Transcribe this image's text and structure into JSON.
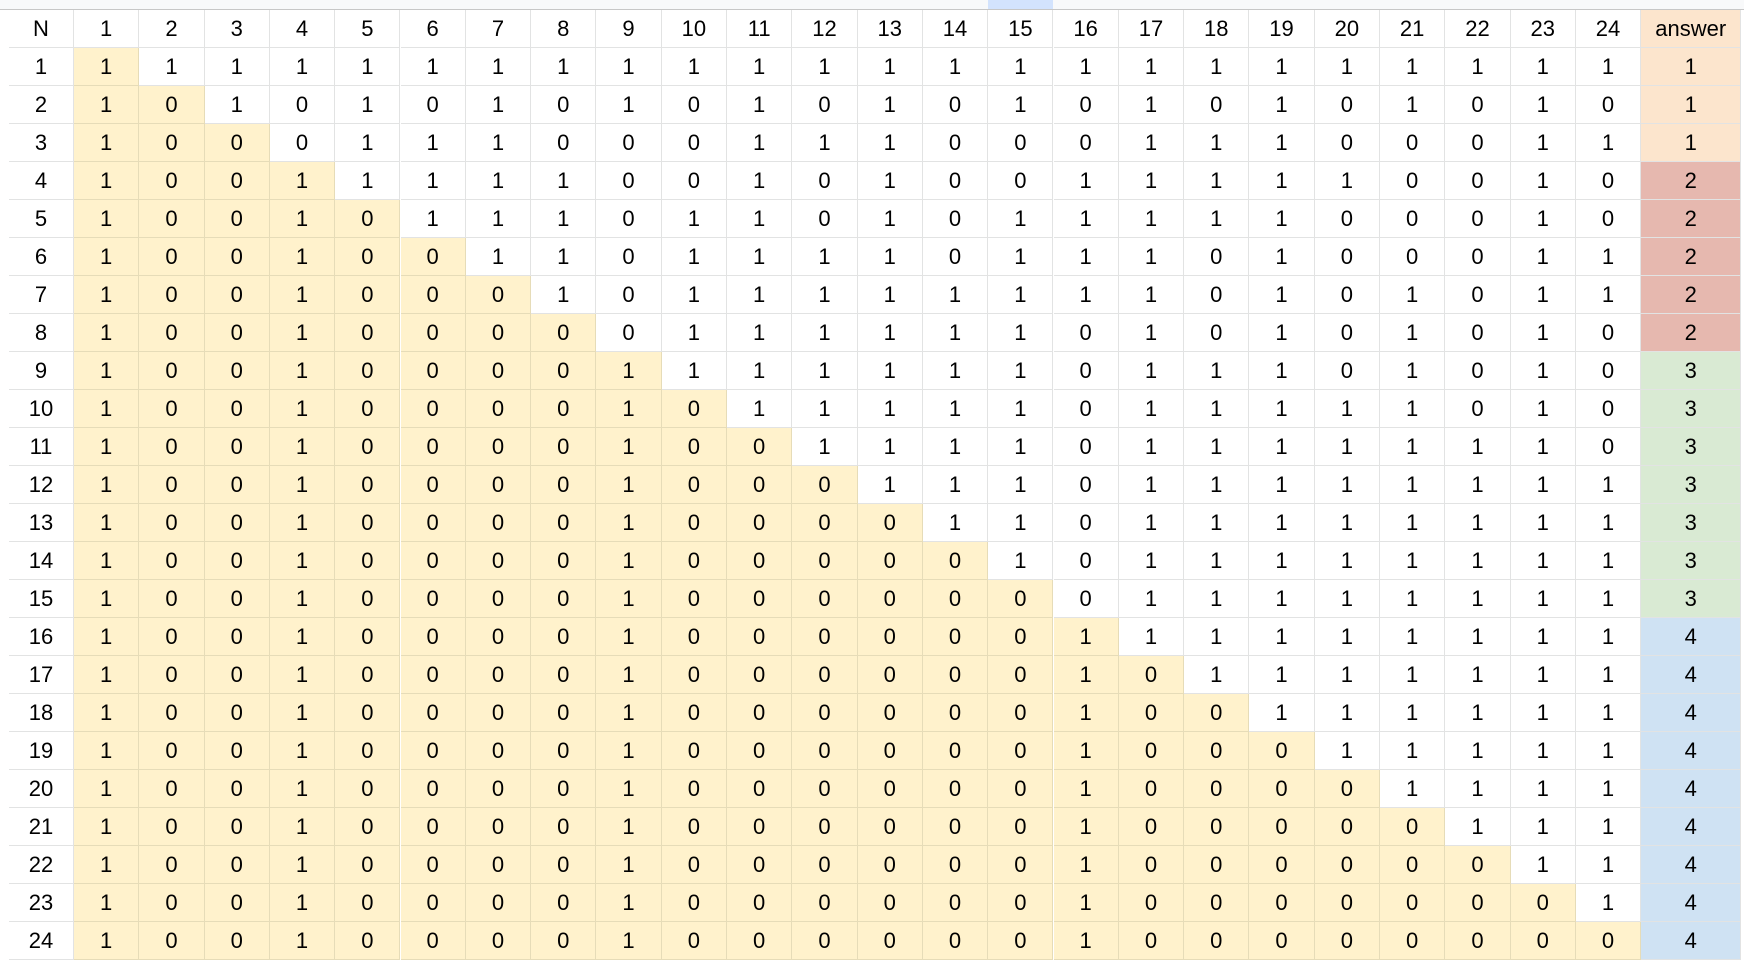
{
  "sheet": {
    "header_label": "N",
    "answer_label": "answer",
    "header_highlight_column": 15,
    "colors": {
      "triangle_fill": "#fff2cc",
      "answer_header_fill": "#fce5cd",
      "answer_groups": {
        "1": "#fce5cd",
        "2": "#e6b8af",
        "3": "#d9ead3",
        "4": "#cfe2f3"
      },
      "header_highlight": "#d3e3fd"
    },
    "columns": [
      "1",
      "2",
      "3",
      "4",
      "5",
      "6",
      "7",
      "8",
      "9",
      "10",
      "11",
      "12",
      "13",
      "14",
      "15",
      "16",
      "17",
      "18",
      "19",
      "20",
      "21",
      "22",
      "23",
      "24"
    ],
    "rows": [
      {
        "n": "1",
        "cells": [
          "1",
          "1",
          "1",
          "1",
          "1",
          "1",
          "1",
          "1",
          "1",
          "1",
          "1",
          "1",
          "1",
          "1",
          "1",
          "1",
          "1",
          "1",
          "1",
          "1",
          "1",
          "1",
          "1",
          "1"
        ],
        "answer": "1"
      },
      {
        "n": "2",
        "cells": [
          "1",
          "0",
          "1",
          "0",
          "1",
          "0",
          "1",
          "0",
          "1",
          "0",
          "1",
          "0",
          "1",
          "0",
          "1",
          "0",
          "1",
          "0",
          "1",
          "0",
          "1",
          "0",
          "1",
          "0"
        ],
        "answer": "1"
      },
      {
        "n": "3",
        "cells": [
          "1",
          "0",
          "0",
          "0",
          "1",
          "1",
          "1",
          "0",
          "0",
          "0",
          "1",
          "1",
          "1",
          "0",
          "0",
          "0",
          "1",
          "1",
          "1",
          "0",
          "0",
          "0",
          "1",
          "1"
        ],
        "answer": "1"
      },
      {
        "n": "4",
        "cells": [
          "1",
          "0",
          "0",
          "1",
          "1",
          "1",
          "1",
          "1",
          "0",
          "0",
          "1",
          "0",
          "1",
          "0",
          "0",
          "1",
          "1",
          "1",
          "1",
          "1",
          "0",
          "0",
          "1",
          "0"
        ],
        "answer": "2"
      },
      {
        "n": "5",
        "cells": [
          "1",
          "0",
          "0",
          "1",
          "0",
          "1",
          "1",
          "1",
          "0",
          "1",
          "1",
          "0",
          "1",
          "0",
          "1",
          "1",
          "1",
          "1",
          "1",
          "0",
          "0",
          "0",
          "1",
          "0"
        ],
        "answer": "2"
      },
      {
        "n": "6",
        "cells": [
          "1",
          "0",
          "0",
          "1",
          "0",
          "0",
          "1",
          "1",
          "0",
          "1",
          "1",
          "1",
          "1",
          "0",
          "1",
          "1",
          "1",
          "0",
          "1",
          "0",
          "0",
          "0",
          "1",
          "1"
        ],
        "answer": "2"
      },
      {
        "n": "7",
        "cells": [
          "1",
          "0",
          "0",
          "1",
          "0",
          "0",
          "0",
          "1",
          "0",
          "1",
          "1",
          "1",
          "1",
          "1",
          "1",
          "1",
          "1",
          "0",
          "1",
          "0",
          "1",
          "0",
          "1",
          "1"
        ],
        "answer": "2"
      },
      {
        "n": "8",
        "cells": [
          "1",
          "0",
          "0",
          "1",
          "0",
          "0",
          "0",
          "0",
          "0",
          "1",
          "1",
          "1",
          "1",
          "1",
          "1",
          "0",
          "1",
          "0",
          "1",
          "0",
          "1",
          "0",
          "1",
          "0"
        ],
        "answer": "2"
      },
      {
        "n": "9",
        "cells": [
          "1",
          "0",
          "0",
          "1",
          "0",
          "0",
          "0",
          "0",
          "1",
          "1",
          "1",
          "1",
          "1",
          "1",
          "1",
          "0",
          "1",
          "1",
          "1",
          "0",
          "1",
          "0",
          "1",
          "0"
        ],
        "answer": "3"
      },
      {
        "n": "10",
        "cells": [
          "1",
          "0",
          "0",
          "1",
          "0",
          "0",
          "0",
          "0",
          "1",
          "0",
          "1",
          "1",
          "1",
          "1",
          "1",
          "0",
          "1",
          "1",
          "1",
          "1",
          "1",
          "0",
          "1",
          "0"
        ],
        "answer": "3"
      },
      {
        "n": "11",
        "cells": [
          "1",
          "0",
          "0",
          "1",
          "0",
          "0",
          "0",
          "0",
          "1",
          "0",
          "0",
          "1",
          "1",
          "1",
          "1",
          "0",
          "1",
          "1",
          "1",
          "1",
          "1",
          "1",
          "1",
          "0"
        ],
        "answer": "3"
      },
      {
        "n": "12",
        "cells": [
          "1",
          "0",
          "0",
          "1",
          "0",
          "0",
          "0",
          "0",
          "1",
          "0",
          "0",
          "0",
          "1",
          "1",
          "1",
          "0",
          "1",
          "1",
          "1",
          "1",
          "1",
          "1",
          "1",
          "1"
        ],
        "answer": "3"
      },
      {
        "n": "13",
        "cells": [
          "1",
          "0",
          "0",
          "1",
          "0",
          "0",
          "0",
          "0",
          "1",
          "0",
          "0",
          "0",
          "0",
          "1",
          "1",
          "0",
          "1",
          "1",
          "1",
          "1",
          "1",
          "1",
          "1",
          "1"
        ],
        "answer": "3"
      },
      {
        "n": "14",
        "cells": [
          "1",
          "0",
          "0",
          "1",
          "0",
          "0",
          "0",
          "0",
          "1",
          "0",
          "0",
          "0",
          "0",
          "0",
          "1",
          "0",
          "1",
          "1",
          "1",
          "1",
          "1",
          "1",
          "1",
          "1"
        ],
        "answer": "3"
      },
      {
        "n": "15",
        "cells": [
          "1",
          "0",
          "0",
          "1",
          "0",
          "0",
          "0",
          "0",
          "1",
          "0",
          "0",
          "0",
          "0",
          "0",
          "0",
          "0",
          "1",
          "1",
          "1",
          "1",
          "1",
          "1",
          "1",
          "1"
        ],
        "answer": "3"
      },
      {
        "n": "16",
        "cells": [
          "1",
          "0",
          "0",
          "1",
          "0",
          "0",
          "0",
          "0",
          "1",
          "0",
          "0",
          "0",
          "0",
          "0",
          "0",
          "1",
          "1",
          "1",
          "1",
          "1",
          "1",
          "1",
          "1",
          "1"
        ],
        "answer": "4"
      },
      {
        "n": "17",
        "cells": [
          "1",
          "0",
          "0",
          "1",
          "0",
          "0",
          "0",
          "0",
          "1",
          "0",
          "0",
          "0",
          "0",
          "0",
          "0",
          "1",
          "0",
          "1",
          "1",
          "1",
          "1",
          "1",
          "1",
          "1"
        ],
        "answer": "4"
      },
      {
        "n": "18",
        "cells": [
          "1",
          "0",
          "0",
          "1",
          "0",
          "0",
          "0",
          "0",
          "1",
          "0",
          "0",
          "0",
          "0",
          "0",
          "0",
          "1",
          "0",
          "0",
          "1",
          "1",
          "1",
          "1",
          "1",
          "1"
        ],
        "answer": "4"
      },
      {
        "n": "19",
        "cells": [
          "1",
          "0",
          "0",
          "1",
          "0",
          "0",
          "0",
          "0",
          "1",
          "0",
          "0",
          "0",
          "0",
          "0",
          "0",
          "1",
          "0",
          "0",
          "0",
          "1",
          "1",
          "1",
          "1",
          "1"
        ],
        "answer": "4"
      },
      {
        "n": "20",
        "cells": [
          "1",
          "0",
          "0",
          "1",
          "0",
          "0",
          "0",
          "0",
          "1",
          "0",
          "0",
          "0",
          "0",
          "0",
          "0",
          "1",
          "0",
          "0",
          "0",
          "0",
          "1",
          "1",
          "1",
          "1"
        ],
        "answer": "4"
      },
      {
        "n": "21",
        "cells": [
          "1",
          "0",
          "0",
          "1",
          "0",
          "0",
          "0",
          "0",
          "1",
          "0",
          "0",
          "0",
          "0",
          "0",
          "0",
          "1",
          "0",
          "0",
          "0",
          "0",
          "0",
          "1",
          "1",
          "1"
        ],
        "answer": "4"
      },
      {
        "n": "22",
        "cells": [
          "1",
          "0",
          "0",
          "1",
          "0",
          "0",
          "0",
          "0",
          "1",
          "0",
          "0",
          "0",
          "0",
          "0",
          "0",
          "1",
          "0",
          "0",
          "0",
          "0",
          "0",
          "0",
          "1",
          "1"
        ],
        "answer": "4"
      },
      {
        "n": "23",
        "cells": [
          "1",
          "0",
          "0",
          "1",
          "0",
          "0",
          "0",
          "0",
          "1",
          "0",
          "0",
          "0",
          "0",
          "0",
          "0",
          "1",
          "0",
          "0",
          "0",
          "0",
          "0",
          "0",
          "0",
          "1"
        ],
        "answer": "4"
      },
      {
        "n": "24",
        "cells": [
          "1",
          "0",
          "0",
          "1",
          "0",
          "0",
          "0",
          "0",
          "1",
          "0",
          "0",
          "0",
          "0",
          "0",
          "0",
          "1",
          "0",
          "0",
          "0",
          "0",
          "0",
          "0",
          "0",
          "0"
        ],
        "answer": "4"
      }
    ]
  }
}
